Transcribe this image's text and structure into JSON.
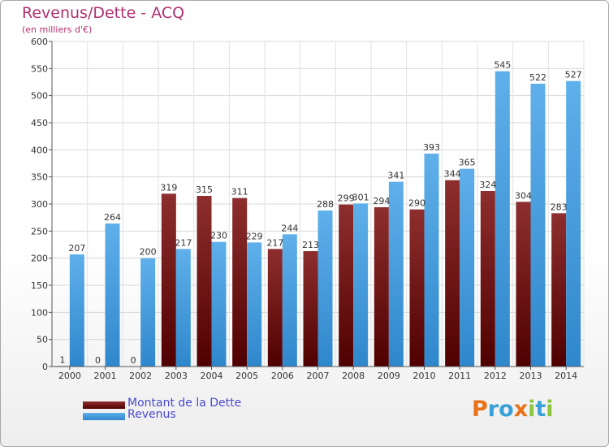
{
  "header": {
    "title": "Revenus/Dette - ACQ",
    "subtitle": "(en milliers d'€)"
  },
  "legend": [
    {
      "label": "Montant de la Dette",
      "color": "#6b0a0a"
    },
    {
      "label": "Revenus",
      "color": "#3d9be0"
    }
  ],
  "logo": {
    "text": "Proxiti",
    "letters": [
      {
        "char": "P",
        "color": "#e8731a"
      },
      {
        "char": "r",
        "color": "#3aa0d8"
      },
      {
        "char": "o",
        "color": "#3aa0d8"
      },
      {
        "char": "x",
        "color": "#e8731a"
      },
      {
        "char": "i",
        "color": "#8cc63f"
      },
      {
        "char": "t",
        "color": "#3aa0d8"
      },
      {
        "char": "i",
        "color": "#8cc63f"
      }
    ]
  },
  "chart_data": {
    "type": "bar",
    "title": "Revenus/Dette - ACQ",
    "subtitle": "(en milliers d'€)",
    "categories": [
      "2000",
      "2001",
      "2002",
      "2003",
      "2004",
      "2005",
      "2006",
      "2007",
      "2008",
      "2009",
      "2010",
      "2011",
      "2012",
      "2013",
      "2014"
    ],
    "series": [
      {
        "name": "Montant de la Dette",
        "color": "#6b0a0a",
        "color_light": "#8e2e2e",
        "values": [
          1,
          0,
          0,
          319,
          315,
          311,
          217,
          213,
          299,
          294,
          290,
          344,
          324,
          304,
          283
        ]
      },
      {
        "name": "Revenus",
        "color": "#3d9be0",
        "color_light": "#5fb0ea",
        "values": [
          207,
          264,
          200,
          217,
          230,
          229,
          244,
          288,
          301,
          341,
          393,
          365,
          545,
          522,
          527
        ]
      }
    ],
    "ylim": [
      0,
      600
    ],
    "yticks": [
      0,
      50,
      100,
      150,
      200,
      250,
      300,
      350,
      400,
      450,
      500,
      550,
      600
    ],
    "grid": true,
    "legend_position": "bottom-left"
  }
}
